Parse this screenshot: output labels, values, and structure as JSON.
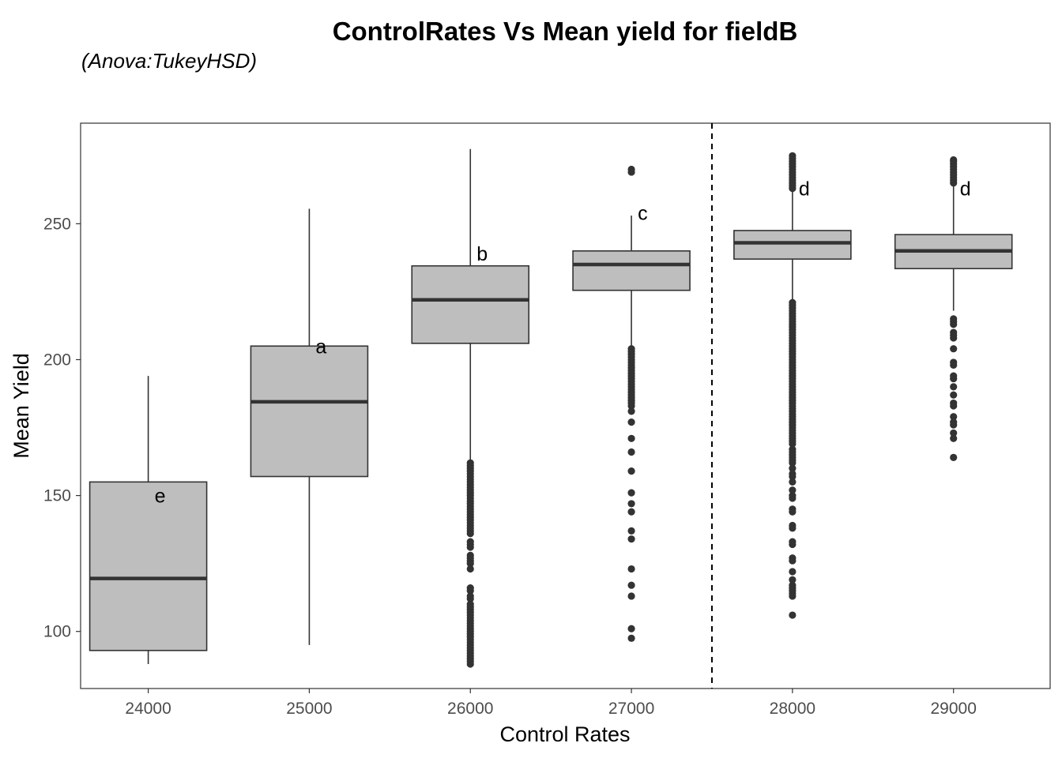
{
  "chart_data": {
    "type": "box",
    "title": "ControlRates Vs Mean yield for fieldB",
    "subtitle": "(Anova:TukeyHSD)",
    "xlabel": "Control Rates",
    "ylabel": "Mean Yield",
    "xlim": [
      23580,
      29600
    ],
    "ylim": [
      79,
      287
    ],
    "x_ticks": [
      24000,
      25000,
      26000,
      27000,
      28000,
      29000
    ],
    "y_ticks": [
      100,
      150,
      200,
      250
    ],
    "grid": false,
    "reference_line": {
      "x": 27500,
      "style": "dashed"
    },
    "box_fill": "#bebebe",
    "line_color": "#333333",
    "boxes": [
      {
        "x": 24000,
        "lower_whisker": 88,
        "q1": 93,
        "median": 119.5,
        "q3": 155,
        "upper_whisker": 194,
        "group": "e",
        "group_label_y": 150,
        "outliers": []
      },
      {
        "x": 25000,
        "lower_whisker": 95,
        "q1": 157,
        "median": 184.5,
        "q3": 205,
        "upper_whisker": 255.5,
        "group": "a",
        "group_label_y": 205,
        "outliers": []
      },
      {
        "x": 26000,
        "lower_whisker": 163,
        "q1": 206,
        "median": 222,
        "q3": 234.5,
        "upper_whisker": 277.5,
        "group": "b",
        "group_label_y": 239,
        "outliers": [
          162,
          161,
          160,
          159,
          158,
          157,
          156,
          155,
          154,
          153,
          152,
          151,
          150,
          149,
          148,
          147,
          146,
          145,
          144,
          143,
          142,
          141,
          140,
          139,
          138,
          137,
          136,
          133,
          132,
          131,
          128,
          127,
          126,
          125,
          123,
          116,
          115,
          113,
          112,
          110,
          109,
          108,
          107,
          106,
          105,
          104,
          103,
          102,
          101,
          100,
          99,
          98,
          97,
          96,
          95,
          94,
          93,
          92,
          91,
          90,
          89,
          88
        ]
      },
      {
        "x": 27000,
        "lower_whisker": 204.5,
        "q1": 225.5,
        "median": 235,
        "q3": 240,
        "upper_whisker": 253,
        "group": "c",
        "group_label_y": 254,
        "outliers": [
          270,
          269,
          204,
          203,
          202,
          201,
          200,
          199,
          198,
          197,
          196,
          195,
          194,
          193,
          192,
          191,
          190,
          189,
          188,
          187,
          186,
          185,
          184,
          183,
          181,
          177,
          171,
          166,
          159,
          151,
          147,
          144,
          137,
          134,
          123,
          117,
          113,
          101,
          97.5
        ]
      },
      {
        "x": 28000,
        "lower_whisker": 222,
        "q1": 237,
        "median": 243,
        "q3": 247.5,
        "upper_whisker": 262,
        "group": "d",
        "group_label_y": 263,
        "outliers": [
          275,
          274,
          273,
          272,
          271,
          270,
          269,
          268,
          267,
          266,
          265,
          264,
          263,
          221,
          220,
          219,
          218,
          217,
          216,
          215,
          214,
          213,
          212,
          211,
          210,
          209,
          208,
          207,
          206,
          205,
          204,
          203,
          202,
          201,
          200,
          199,
          198,
          197,
          196,
          195,
          194,
          193,
          192,
          191,
          190,
          189,
          188,
          187,
          186,
          185,
          184,
          183,
          182,
          181,
          180,
          179,
          178,
          177,
          176,
          175,
          174,
          173,
          172,
          171,
          170,
          169,
          167,
          166,
          165,
          164,
          163,
          162,
          160,
          158,
          157,
          155,
          152,
          150,
          149,
          145,
          144,
          139,
          138,
          133,
          132,
          127,
          126,
          122,
          119,
          117,
          116,
          115,
          114,
          113,
          106
        ]
      },
      {
        "x": 29000,
        "lower_whisker": 218,
        "q1": 233.5,
        "median": 240,
        "q3": 246,
        "upper_whisker": 264,
        "group": "d",
        "group_label_y": 263,
        "outliers": [
          273.5,
          273,
          272,
          271,
          270,
          269,
          268,
          267,
          266,
          265,
          215,
          214,
          213,
          210,
          209,
          208,
          204,
          199,
          198,
          194,
          193,
          190,
          187,
          184,
          183,
          179,
          177,
          176,
          173,
          171,
          164
        ]
      }
    ]
  }
}
